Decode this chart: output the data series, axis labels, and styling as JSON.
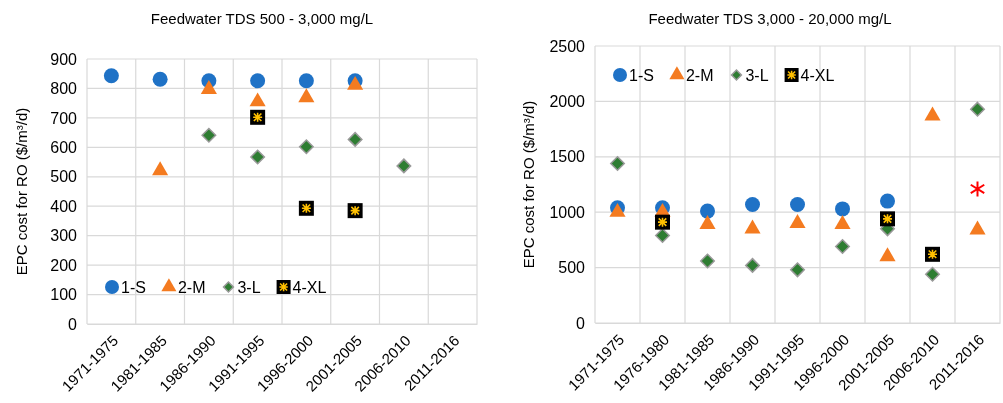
{
  "chart_data": [
    {
      "type": "scatter",
      "title": "Feedwater TDS 500 - 3,000 mg/L",
      "ylabel": "EPC cost for RO ($/m³/d)",
      "categories": [
        "1971-1975",
        "1981-1985",
        "1986-1990",
        "1991-1995",
        "1996-2000",
        "2001-2005",
        "2006-2010",
        "2011-2016"
      ],
      "ylim": [
        0,
        900
      ],
      "yticks": [
        0,
        100,
        200,
        300,
        400,
        500,
        600,
        700,
        800,
        900
      ],
      "grid": true,
      "legend": "bottom left",
      "series": [
        {
          "name": "1-S",
          "color": "#1f72c6",
          "marker": "circle",
          "values": [
            843,
            831,
            826,
            826,
            826,
            826,
            null,
            null
          ]
        },
        {
          "name": "2-M",
          "color": "#f47b20",
          "marker": "triangle",
          "values": [
            null,
            521,
            797,
            755,
            769,
            811,
            null,
            null
          ]
        },
        {
          "name": "3-L",
          "color": "#2e7d32",
          "marker": "diamond",
          "values": [
            null,
            null,
            641,
            567,
            602,
            627,
            537,
            null
          ]
        },
        {
          "name": "4-XL",
          "color": "#000000",
          "marker": "square",
          "values": [
            null,
            null,
            null,
            702,
            393,
            385,
            null,
            null
          ]
        }
      ]
    },
    {
      "type": "scatter",
      "title": "Feedwater TDS 3,000 - 20,000 mg/L",
      "ylabel": "EPC cost for RO ($/m³/d)",
      "categories": [
        "1971-1975",
        "1976-1980",
        "1981-1985",
        "1986-1990",
        "1991-1995",
        "1996-2000",
        "2001-2005",
        "2006-2010",
        "2011-2016"
      ],
      "ylim": [
        0,
        2500
      ],
      "yticks": [
        0,
        500,
        1000,
        1500,
        2000,
        2500
      ],
      "grid": true,
      "legend": "top left",
      "series": [
        {
          "name": "1-S",
          "color": "#1f72c6",
          "marker": "circle",
          "values": [
            1040,
            1040,
            1010,
            1070,
            1070,
            1030,
            1100,
            null,
            null
          ]
        },
        {
          "name": "2-M",
          "color": "#f47b20",
          "marker": "triangle",
          "values": [
            1000,
            1000,
            890,
            850,
            900,
            890,
            600,
            1870,
            840
          ]
        },
        {
          "name": "3-L",
          "color": "#2e7d32",
          "marker": "diamond",
          "values": [
            1440,
            790,
            560,
            520,
            480,
            690,
            850,
            440,
            1930
          ]
        },
        {
          "name": "4-XL",
          "color": "#000000",
          "marker": "square",
          "values": [
            null,
            910,
            null,
            null,
            null,
            null,
            940,
            620,
            null
          ]
        },
        {
          "color": "#ff0000",
          "marker": "cross",
          "values": [
            null,
            null,
            null,
            null,
            null,
            null,
            null,
            null,
            1210
          ]
        }
      ]
    }
  ]
}
